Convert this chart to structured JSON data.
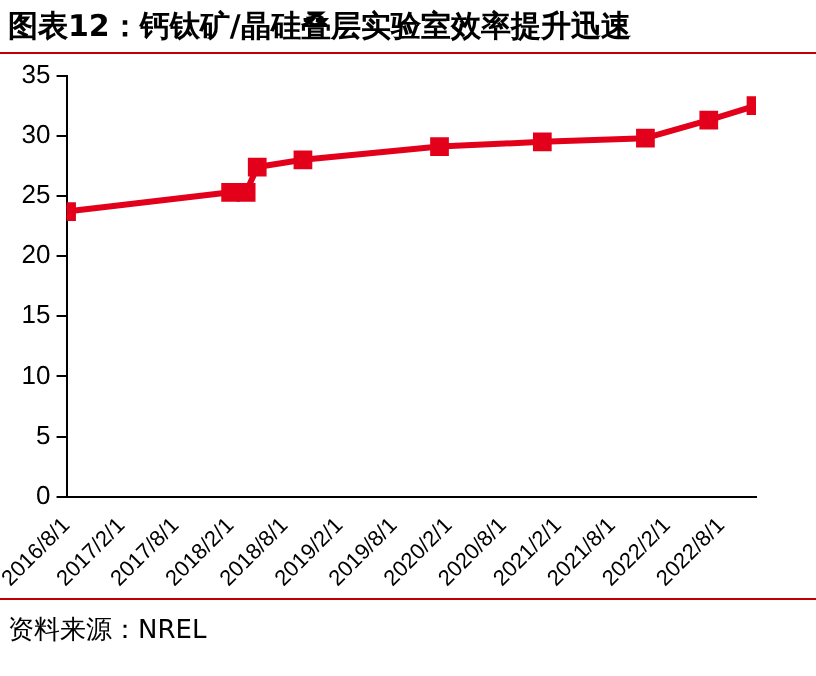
{
  "chart_data": {
    "type": "line",
    "title": "图表12：钙钛矿/晶硅叠层实验室效率提升迅速",
    "x": [
      "2016-08-01",
      "2018-02-01",
      "2018-03-25",
      "2018-05-01",
      "2018-10-01",
      "2020-01-01",
      "2020-12-10",
      "2021-11-20",
      "2022-06-20",
      "2022-11-25"
    ],
    "series": [
      {
        "color": "#e3001b",
        "values": [
          23.7,
          25.3,
          25.3,
          27.4,
          28.0,
          29.1,
          29.5,
          29.8,
          31.3,
          32.5
        ]
      }
    ],
    "xlim": [
      "2016-08-01",
      "2022-11-25"
    ],
    "xticks": [
      {
        "value": "2016-08-01",
        "label": "2016/8/1"
      },
      {
        "value": "2017-02-01",
        "label": "2017/2/1"
      },
      {
        "value": "2017-08-01",
        "label": "2017/8/1"
      },
      {
        "value": "2018-02-01",
        "label": "2018/2/1"
      },
      {
        "value": "2018-08-01",
        "label": "2018/8/1"
      },
      {
        "value": "2019-02-01",
        "label": "2019/2/1"
      },
      {
        "value": "2019-08-01",
        "label": "2019/8/1"
      },
      {
        "value": "2020-02-01",
        "label": "2020/2/1"
      },
      {
        "value": "2020-08-01",
        "label": "2020/8/1"
      },
      {
        "value": "2021-02-01",
        "label": "2021/2/1"
      },
      {
        "value": "2021-08-01",
        "label": "2021/8/1"
      },
      {
        "value": "2022-02-01",
        "label": "2022/2/1"
      },
      {
        "value": "2022-08-01",
        "label": "2022/8/1"
      }
    ],
    "ylim": [
      0,
      35
    ],
    "yticks": [
      0,
      5,
      10,
      15,
      20,
      25,
      30,
      35
    ],
    "grid": false,
    "legend": false,
    "marker": "square",
    "line_style": "solid",
    "annotations": [
      "资料来源：NREL"
    ]
  }
}
